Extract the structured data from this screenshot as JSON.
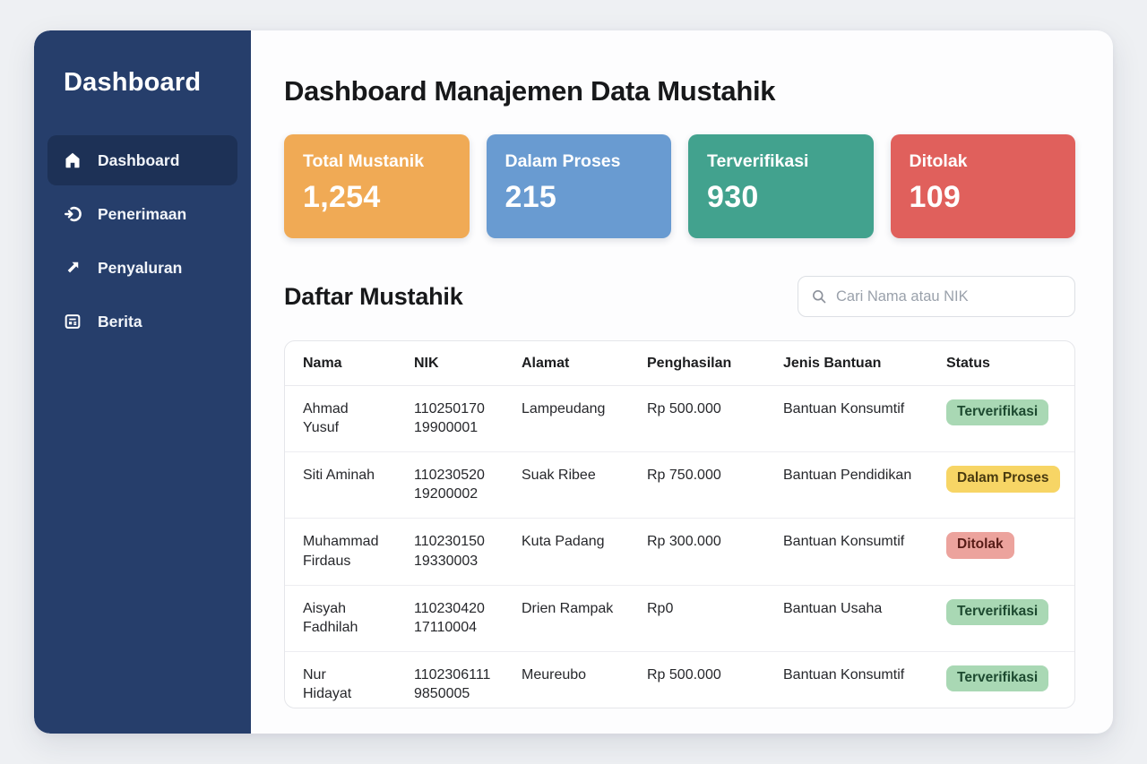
{
  "sidebar": {
    "title": "Dashboard",
    "items": [
      {
        "label": "Dashboard",
        "icon": "home",
        "active": true
      },
      {
        "label": "Penerimaan",
        "icon": "login-arrow",
        "active": false
      },
      {
        "label": "Penyaluran",
        "icon": "arrow-up-right",
        "active": false
      },
      {
        "label": "Berita",
        "icon": "news",
        "active": false
      }
    ]
  },
  "header": {
    "title": "Dashboard Manajemen Data Mustahik"
  },
  "stats": [
    {
      "label": "Total Mustanik",
      "value": "1,254",
      "color": "#f0aa55"
    },
    {
      "label": "Dalam Proses",
      "value": "215",
      "color": "#699bd1"
    },
    {
      "label": "Terverifikasi",
      "value": "930",
      "color": "#42a28e"
    },
    {
      "label": "Ditolak",
      "value": "109",
      "color": "#e0605c"
    }
  ],
  "list_section": {
    "title": "Daftar Mustahik",
    "search_placeholder": "Cari Nama atau NIK"
  },
  "table": {
    "columns": [
      "Nama",
      "NIK",
      "Alamat",
      "Penghasilan",
      "Jenis Bantuan",
      "Status"
    ],
    "rows": [
      {
        "nama": "Ahmad Yusuf",
        "nik": "11025017019900001",
        "alamat": "Lampeudang",
        "penghasilan": "Rp 500.000",
        "jenis_bantuan": "Bantuan Konsumtif",
        "status": "Terverifikasi"
      },
      {
        "nama": "Siti Aminah",
        "nik": "11023052019200002",
        "alamat": "Suak Ribee",
        "penghasilan": "Rp 750.000",
        "jenis_bantuan": "Bantuan Pendidikan",
        "status": "Dalam Proses"
      },
      {
        "nama": "Muhammad Firdaus",
        "nik": "11023015019330003",
        "alamat": "Kuta Padang",
        "penghasilan": "Rp 300.000",
        "jenis_bantuan": "Bantuan Konsumtif",
        "status": "Ditolak"
      },
      {
        "nama": "Aisyah Fadhilah",
        "nik": "11023042017110004",
        "alamat": "Drien Rampak",
        "penghasilan": "Rp0",
        "jenis_bantuan": "Bantuan Usaha",
        "status": "Terverifikasi"
      },
      {
        "nama": "Nur Hidayat",
        "nik": "11023061119850005",
        "alamat": "Meureubo",
        "penghasilan": "Rp 500.000",
        "jenis_bantuan": "Bantuan Konsumtif",
        "status": "Terverifikasi"
      }
    ],
    "badges": {
      "Terverifikasi": {
        "bg": "#a9d8b4",
        "text": "#1d4a30"
      },
      "Dalam Proses": {
        "bg": "#f7d565",
        "text": "#4a3b10"
      },
      "Ditolak": {
        "bg": "#eca39d",
        "text": "#571c17"
      }
    }
  }
}
